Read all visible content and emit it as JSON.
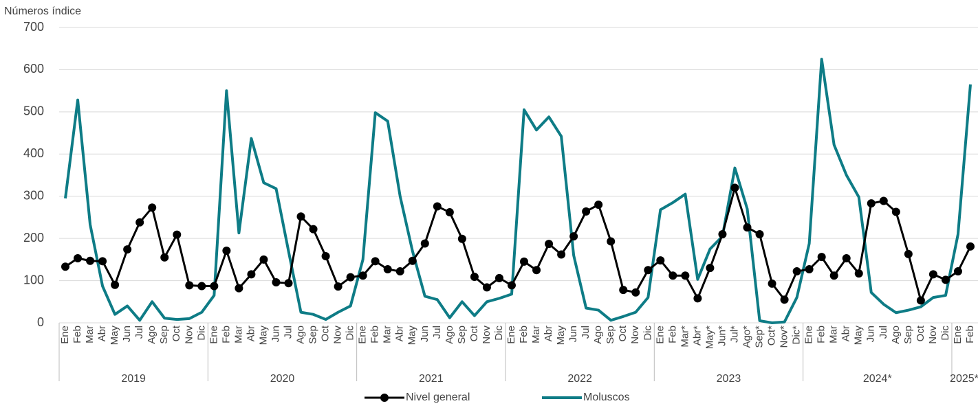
{
  "chart_data": {
    "type": "line",
    "y_label": "Números índice",
    "categories": [
      "Ene",
      "Feb",
      "Mar",
      "Abr",
      "May",
      "Jun",
      "Jul",
      "Ago",
      "Sep",
      "Oct",
      "Nov",
      "Dic",
      "Ene",
      "Feb",
      "Mar",
      "Abr",
      "May",
      "Jun",
      "Jul",
      "Ago",
      "Sep",
      "Oct",
      "Nov",
      "Dic",
      "Ene",
      "Feb",
      "Mar",
      "Abr",
      "May",
      "Jun",
      "Jul",
      "Ago",
      "Sep",
      "Oct",
      "Nov",
      "Dic",
      "Ene",
      "Feb",
      "Mar",
      "Abr",
      "May",
      "Jun",
      "Jul",
      "Ago",
      "Sep",
      "Oct",
      "Nov",
      "Dic",
      "Ene",
      "Feb",
      "Mar*",
      "Abr*",
      "May*",
      "Jun*",
      "Jul*",
      "Ago*",
      "Sep*",
      "Oct*",
      "Nov*",
      "Dic*",
      "Ene",
      "Feb",
      "Mar",
      "Abr",
      "May",
      "Jun",
      "Jul",
      "Ago",
      "Sep",
      "Oct",
      "Nov",
      "Dic",
      "Ene",
      "Feb"
    ],
    "groups": [
      {
        "label": "2019",
        "count": 12
      },
      {
        "label": "2020",
        "count": 12
      },
      {
        "label": "2021",
        "count": 12
      },
      {
        "label": "2022",
        "count": 12
      },
      {
        "label": "2023",
        "count": 12
      },
      {
        "label": "2024*",
        "count": 12
      },
      {
        "label": "2025*",
        "count": 2
      }
    ],
    "series": [
      {
        "name": "Nivel general",
        "color": "#000000",
        "marker": true,
        "values": [
          133,
          153,
          147,
          146,
          90,
          174,
          238,
          273,
          155,
          209,
          89,
          87,
          87,
          171,
          82,
          115,
          150,
          96,
          94,
          252,
          222,
          158,
          86,
          108,
          112,
          146,
          127,
          122,
          147,
          188,
          276,
          262,
          199,
          109,
          84,
          106,
          89,
          145,
          125,
          187,
          162,
          205,
          264,
          280,
          193,
          78,
          72,
          125,
          148,
          112,
          112,
          58,
          130,
          210,
          320,
          226,
          210,
          93,
          55,
          122,
          127,
          156,
          112,
          153,
          117,
          283,
          289,
          263,
          163,
          53,
          115,
          102,
          122,
          181
        ]
      },
      {
        "name": "Moluscos",
        "color": "#0e7c86",
        "marker": false,
        "values": [
          295,
          528,
          233,
          87,
          20,
          40,
          6,
          50,
          11,
          8,
          10,
          25,
          65,
          550,
          213,
          437,
          332,
          318,
          170,
          25,
          20,
          8,
          25,
          40,
          150,
          498,
          478,
          300,
          170,
          63,
          55,
          12,
          50,
          17,
          50,
          58,
          68,
          505,
          457,
          488,
          442,
          160,
          35,
          30,
          6,
          15,
          25,
          60,
          268,
          285,
          305,
          103,
          175,
          205,
          367,
          270,
          5,
          0,
          2,
          60,
          188,
          625,
          422,
          350,
          298,
          72,
          44,
          24,
          30,
          38,
          60,
          65,
          210,
          565
        ]
      }
    ],
    "ylim": [
      0,
      700
    ],
    "yticks": [
      0,
      100,
      200,
      300,
      400,
      500,
      600,
      700
    ],
    "grid": true,
    "legend": "bottom"
  }
}
